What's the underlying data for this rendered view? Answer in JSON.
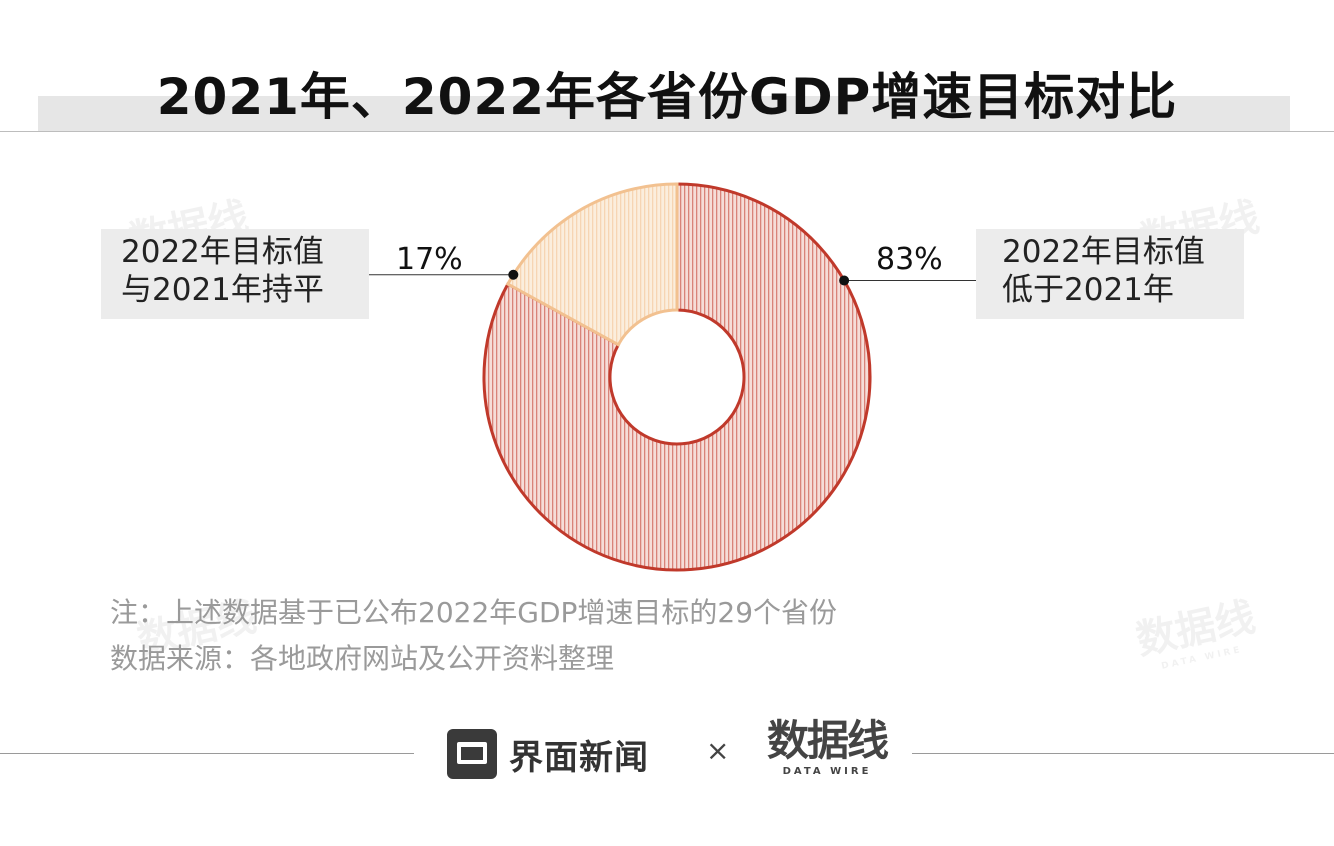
{
  "header": {
    "title": "2021年、2022年各省份GDP增速目标对比"
  },
  "watermark": {
    "text": "数据线",
    "sub": "DATA WIRE"
  },
  "chart_data": {
    "type": "pie",
    "title": "2021年、2022年各省份GDP增速目标对比",
    "donut": true,
    "slices": [
      {
        "label": "2022年目标值低于2021年",
        "value": 83,
        "pct_label": "83%",
        "label_lines": [
          "2022年目标值",
          "低于2021年"
        ],
        "color": "#c0392b",
        "fill": "#f6ddd8"
      },
      {
        "label": "2022年目标值与2021年持平",
        "value": 17,
        "pct_label": "17%",
        "label_lines": [
          "2022年目标值",
          "与2021年持平"
        ],
        "color": "#f2c190",
        "fill": "#fbeedd"
      }
    ],
    "start_angle_deg": 0,
    "direction": "clockwise"
  },
  "notes": {
    "note": "注：上述数据基于已公布2022年GDP增速目标的29个省份",
    "source": "数据来源：各地政府网站及公开资料整理"
  },
  "footer": {
    "brand": "界面新闻",
    "times": "×",
    "partner": "数据线",
    "partner_sub": "DATA WIRE"
  }
}
